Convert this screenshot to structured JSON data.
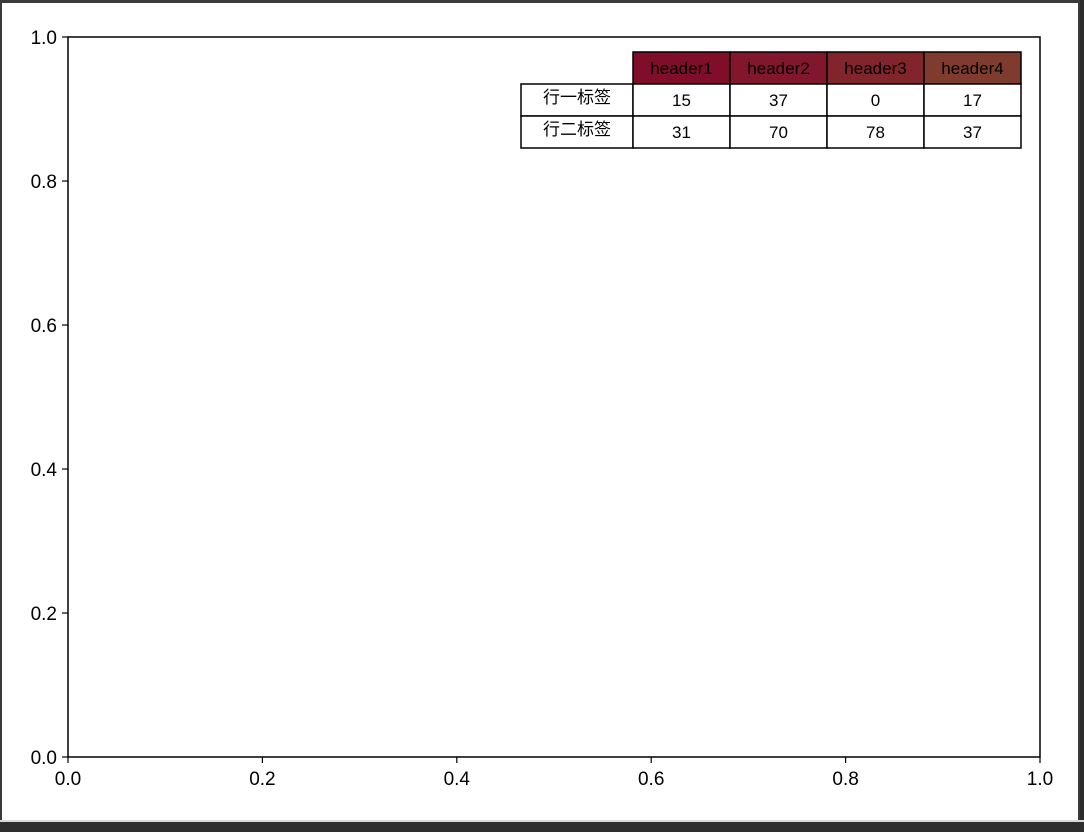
{
  "chart_data": {
    "type": "table",
    "title": "",
    "xlabel": "",
    "ylabel": "",
    "xlim": [
      0.0,
      1.0
    ],
    "ylim": [
      0.0,
      1.0
    ],
    "xticks": [
      "0.0",
      "0.2",
      "0.4",
      "0.6",
      "0.8",
      "1.0"
    ],
    "yticks": [
      "0.0",
      "0.2",
      "0.4",
      "0.6",
      "0.8",
      "1.0"
    ],
    "grid": false,
    "table": {
      "placement": "top-right",
      "col_labels": [
        "header1",
        "header2",
        "header3",
        "header4"
      ],
      "row_labels": [
        "行一标签",
        "行二标签"
      ],
      "cells": [
        [
          "15",
          "37",
          "0",
          "17"
        ],
        [
          "31",
          "70",
          "78",
          "37"
        ]
      ],
      "header_colors": [
        "#800d2a",
        "#82162c",
        "#82242b",
        "#7e3b2e"
      ]
    }
  }
}
